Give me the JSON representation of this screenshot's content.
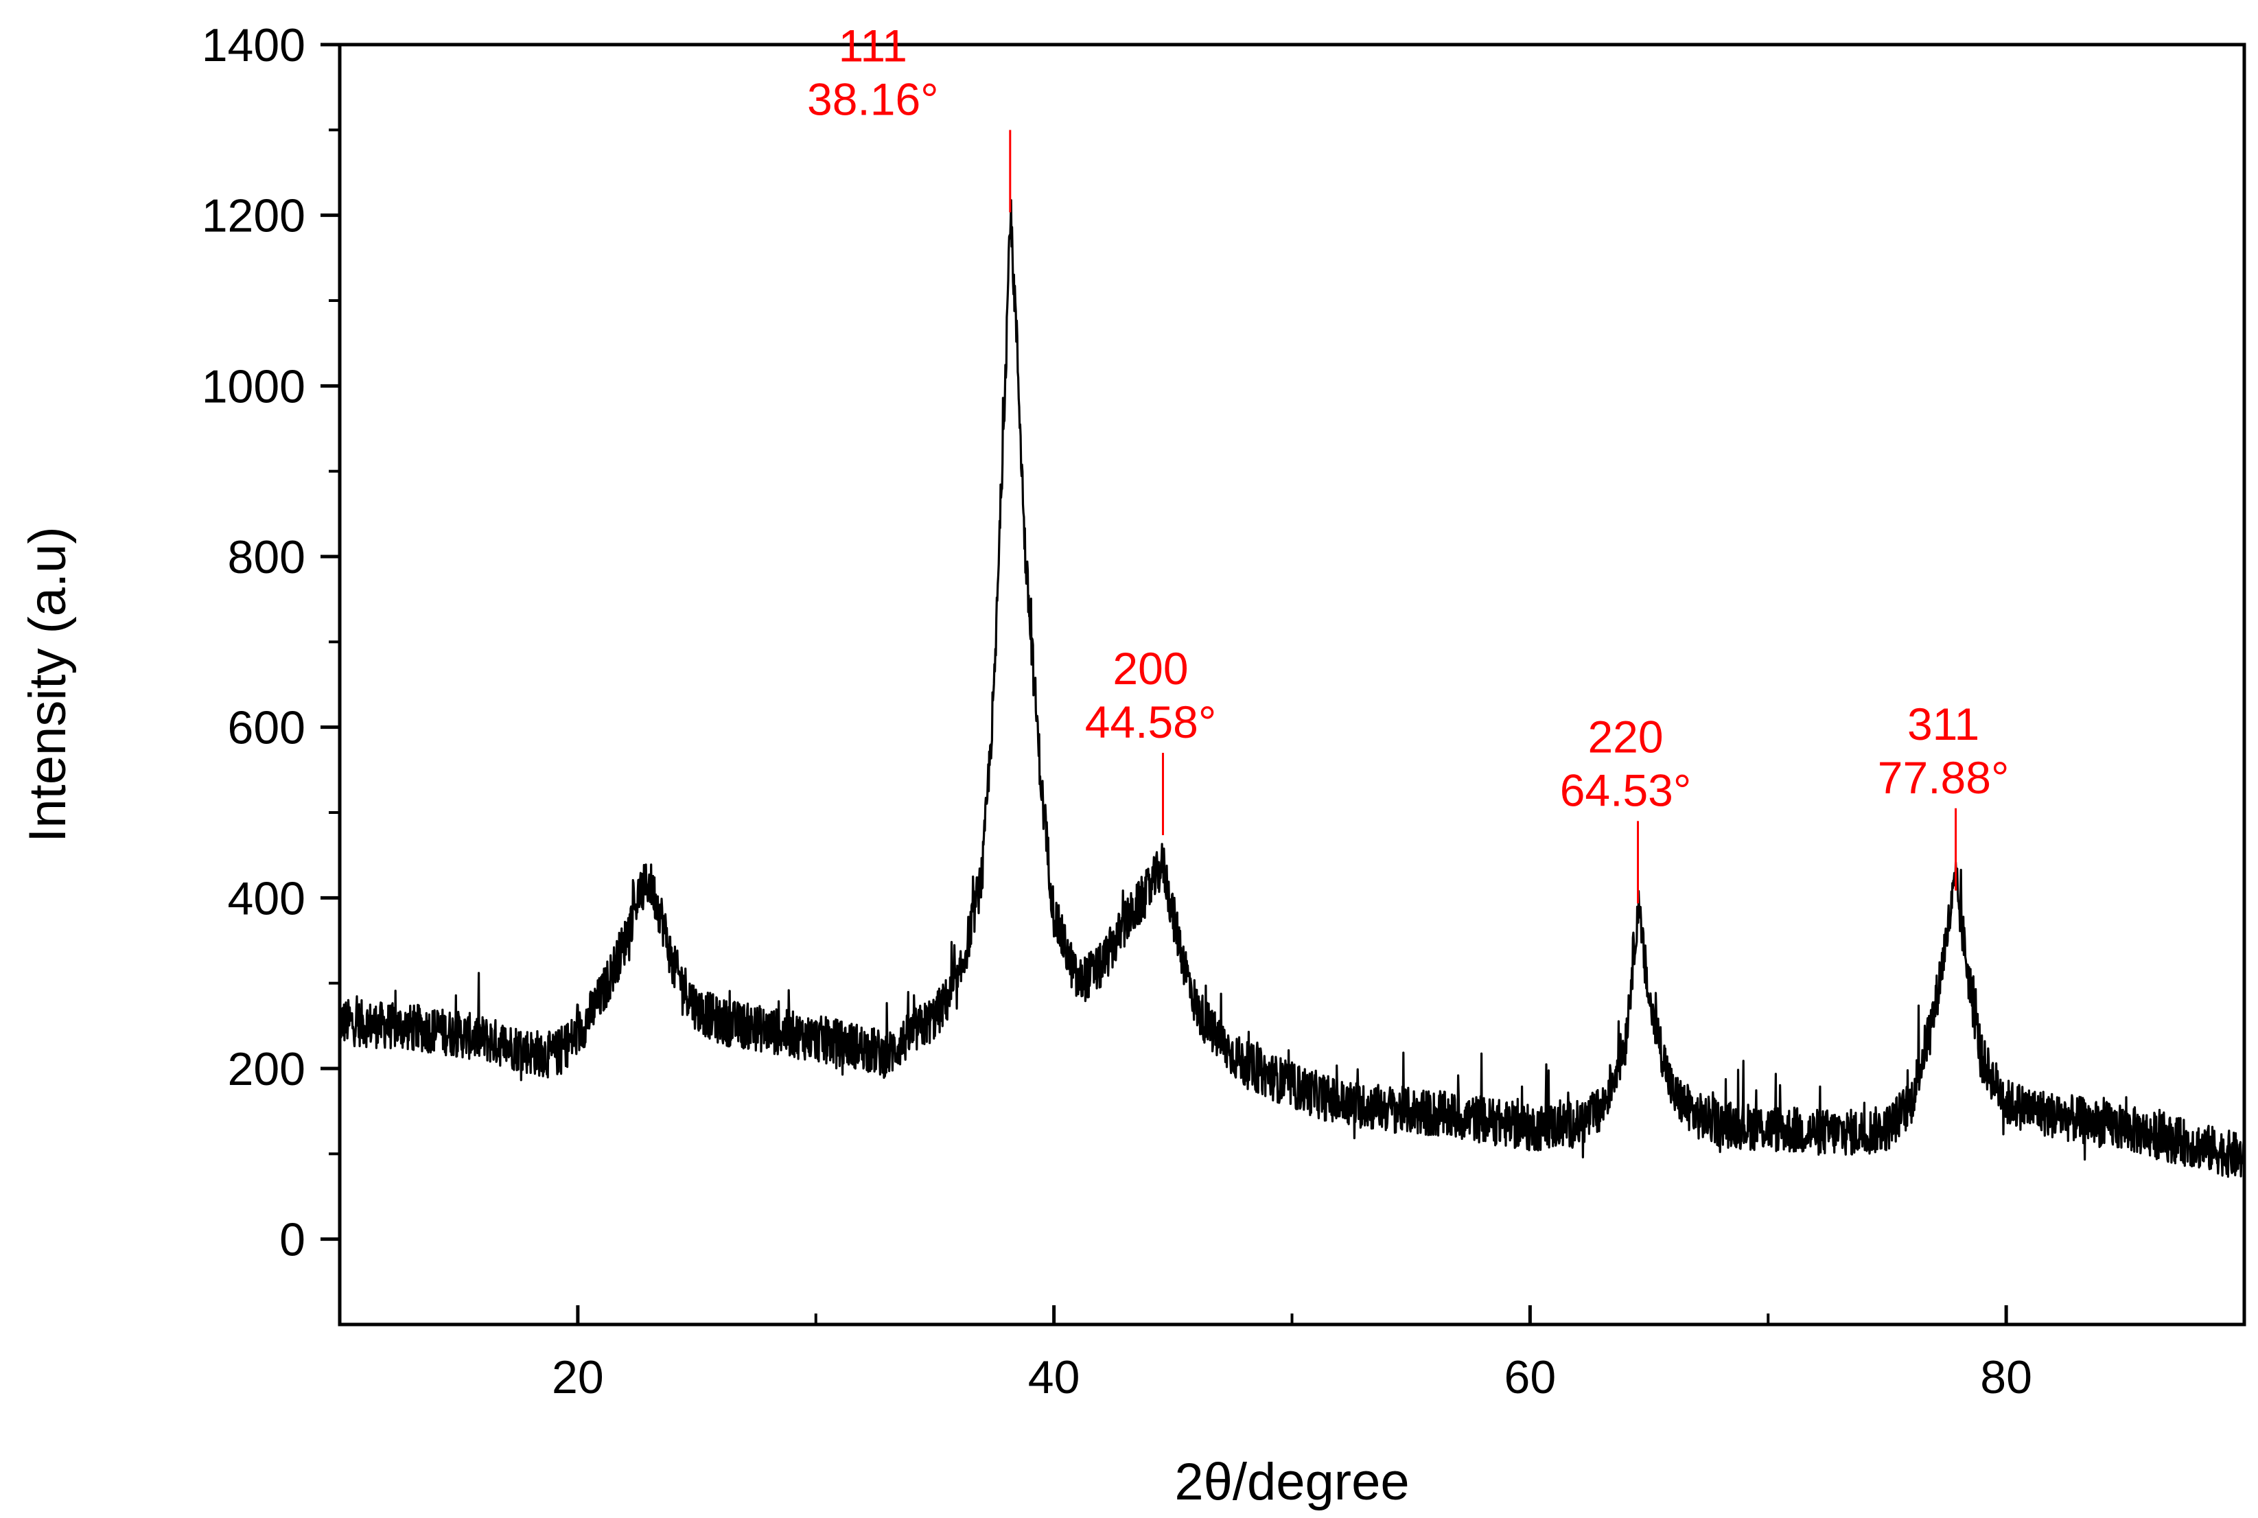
{
  "chart_data": {
    "type": "line",
    "title": "",
    "xlabel": "2θ/degree",
    "ylabel": "Intensity (a.u)",
    "xlim": [
      10,
      90
    ],
    "ylim": [
      -100,
      1400
    ],
    "x_ticks": [
      "20",
      "40",
      "60",
      "80"
    ],
    "y_ticks": [
      "0",
      "200",
      "400",
      "600",
      "800",
      "1000",
      "1200",
      "1400"
    ],
    "grid": false,
    "legend": "none",
    "series": [
      {
        "line_color": "#000000",
        "x": [
          10,
          12,
          14,
          16,
          18,
          19,
          20,
          21,
          22,
          22.5,
          23,
          23.5,
          24,
          25,
          26,
          28,
          30,
          32,
          33,
          34,
          35,
          36,
          37,
          37.5,
          38,
          38.16,
          38.4,
          38.8,
          39.5,
          40,
          41,
          42,
          43,
          44,
          44.58,
          45,
          45.5,
          46,
          47,
          48,
          50,
          52,
          55,
          58,
          60,
          62,
          63,
          64,
          64.53,
          65,
          66,
          67,
          68,
          70,
          72,
          74,
          75,
          76,
          77,
          77.88,
          78.5,
          79,
          80,
          82,
          85,
          88,
          90
        ],
        "y": [
          255,
          250,
          245,
          235,
          220,
          215,
          240,
          285,
          350,
          400,
          420,
          380,
          320,
          270,
          255,
          245,
          235,
          225,
          215,
          240,
          260,
          300,
          430,
          650,
          1050,
          1200,
          1080,
          800,
          520,
          380,
          300,
          320,
          370,
          410,
          440,
          380,
          320,
          270,
          230,
          205,
          180,
          160,
          150,
          140,
          130,
          135,
          150,
          230,
          390,
          280,
          170,
          145,
          135,
          130,
          125,
          125,
          130,
          160,
          270,
          420,
          290,
          210,
          160,
          145,
          130,
          110,
          95
        ]
      }
    ],
    "annotations": [
      {
        "hkl": "111",
        "angle": "38.16°",
        "x": 38.16,
        "y": 1300,
        "color": "#ff0000"
      },
      {
        "hkl": "200",
        "angle": "44.58°",
        "x": 44.58,
        "y": 570,
        "color": "#ff0000"
      },
      {
        "hkl": "220",
        "angle": "64.53°",
        "x": 64.53,
        "y": 490,
        "color": "#ff0000"
      },
      {
        "hkl": "311",
        "angle": "77.88°",
        "x": 77.88,
        "y": 505,
        "color": "#ff0000"
      }
    ]
  }
}
